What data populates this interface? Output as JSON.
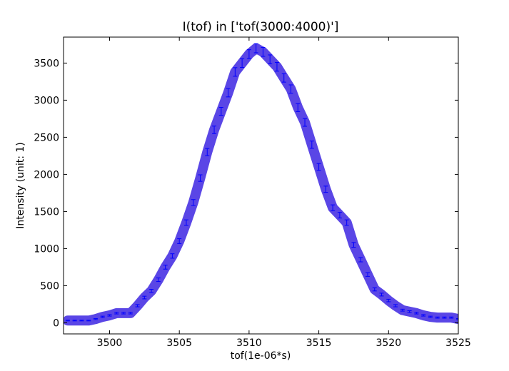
{
  "chart_data": {
    "type": "line",
    "title": "I(tof) in ['tof(3000:4000)']",
    "xlabel": "tof(1e-06*s)",
    "ylabel": "Intensity (unit: 1)",
    "xlim": [
      3496.7,
      3525
    ],
    "ylim": [
      -150,
      3850
    ],
    "xticks": [
      3500,
      3505,
      3510,
      3515,
      3520,
      3525
    ],
    "yticks": [
      0,
      500,
      1000,
      1500,
      2000,
      2500,
      3000,
      3500
    ],
    "grid": false,
    "line_color": "#5a46e6",
    "errorbar_color": "#0000ff",
    "series": [
      {
        "x": [
          3497.0,
          3497.5,
          3498.0,
          3498.5,
          3499.0,
          3499.5,
          3500.0,
          3500.5,
          3501.0,
          3501.5,
          3502.0,
          3502.5,
          3503.0,
          3503.5,
          3504.0,
          3504.5,
          3505.0,
          3505.5,
          3506.0,
          3506.5,
          3507.0,
          3507.5,
          3508.0,
          3508.5,
          3509.0,
          3509.5,
          3510.0,
          3510.5,
          3511.0,
          3511.5,
          3512.0,
          3512.5,
          3513.0,
          3513.5,
          3514.0,
          3514.5,
          3515.0,
          3515.5,
          3516.0,
          3516.5,
          3517.0,
          3517.5,
          3518.0,
          3518.5,
          3519.0,
          3519.5,
          3520.0,
          3520.5,
          3521.0,
          3521.5,
          3522.0,
          3522.5,
          3523.0,
          3523.5,
          3524.0,
          3524.5,
          3525.0
        ],
        "y": [
          30,
          30,
          30,
          30,
          50,
          80,
          100,
          130,
          130,
          130,
          230,
          340,
          430,
          580,
          750,
          900,
          1100,
          1350,
          1620,
          1950,
          2300,
          2600,
          2850,
          3100,
          3380,
          3500,
          3620,
          3700,
          3650,
          3550,
          3450,
          3300,
          3150,
          2900,
          2700,
          2400,
          2100,
          1800,
          1550,
          1450,
          1350,
          1050,
          850,
          650,
          450,
          380,
          300,
          230,
          170,
          150,
          130,
          100,
          80,
          70,
          70,
          70,
          50
        ],
        "errors": [
          5,
          5,
          5,
          5,
          7,
          9,
          10,
          11,
          11,
          11,
          15,
          18,
          21,
          24,
          27,
          30,
          33,
          37,
          40,
          44,
          48,
          51,
          53,
          56,
          58,
          59,
          60,
          61,
          60,
          60,
          59,
          57,
          56,
          54,
          52,
          49,
          46,
          42,
          39,
          38,
          37,
          32,
          29,
          25,
          21,
          19,
          17,
          15,
          13,
          12,
          11,
          10,
          9,
          8,
          8,
          8,
          7
        ]
      }
    ]
  }
}
